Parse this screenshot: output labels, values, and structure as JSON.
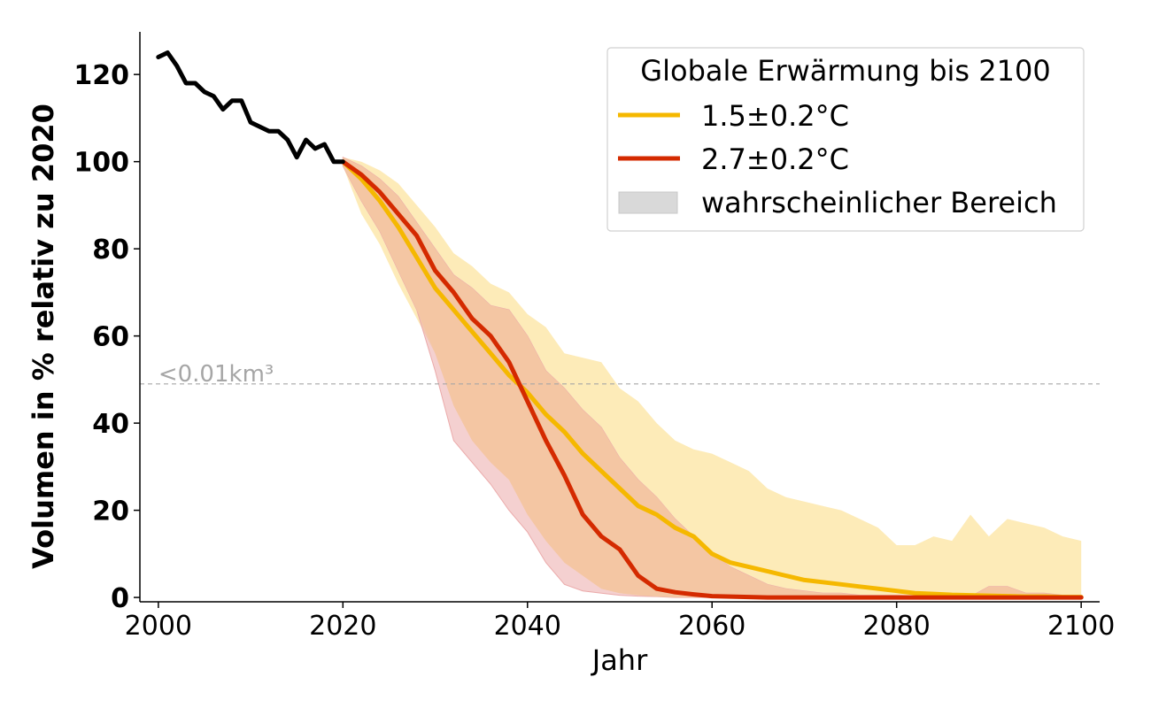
{
  "chart_data": {
    "type": "line",
    "xlabel": "Jahr",
    "ylabel": "Volumen in % relativ zu 2020",
    "xlim": [
      1998,
      2102
    ],
    "ylim": [
      -1,
      131
    ],
    "xticks": [
      2000,
      2020,
      2040,
      2060,
      2080,
      2100
    ],
    "yticks": [
      0,
      20,
      40,
      60,
      80,
      100,
      120
    ],
    "grid": false,
    "legend": {
      "title": "Globale Erwärmung bis 2100",
      "placement": "top-right",
      "entries": [
        "1.5±0.2°C",
        "2.7±0.2°C",
        "wahrscheinlicher Bereich"
      ]
    },
    "annotation": {
      "text": "<0.01km³",
      "y": 49
    },
    "colors": {
      "historical": "#000000",
      "s15": "#f5b800",
      "s27": "#d42a00",
      "band15": "#fdebb8",
      "band27": "#ebaaaa",
      "overlap": "#f4c6a3",
      "legend_patch": "#d9d9d9",
      "annotation": "#a6a6a6"
    },
    "series": [
      {
        "name": "historical",
        "x": [
          2000,
          2001,
          2002,
          2003,
          2004,
          2005,
          2006,
          2007,
          2008,
          2009,
          2010,
          2011,
          2012,
          2013,
          2014,
          2015,
          2016,
          2017,
          2018,
          2019,
          2020
        ],
        "values": [
          124,
          125,
          122,
          118,
          118,
          116,
          115,
          112,
          114,
          114,
          109,
          108,
          107,
          107,
          105,
          101,
          105,
          103,
          104,
          100,
          100
        ]
      },
      {
        "name": "1.5±0.2°C",
        "x": [
          2020,
          2022,
          2024,
          2026,
          2028,
          2030,
          2032,
          2034,
          2036,
          2038,
          2040,
          2042,
          2044,
          2046,
          2048,
          2050,
          2052,
          2054,
          2056,
          2058,
          2060,
          2062,
          2064,
          2066,
          2068,
          2070,
          2072,
          2074,
          2076,
          2078,
          2080,
          2082,
          2084,
          2086,
          2088,
          2090,
          2092,
          2094,
          2096,
          2098,
          2100
        ],
        "values": [
          100,
          96,
          91,
          85,
          78,
          71,
          66,
          61,
          56,
          51,
          47,
          42,
          38,
          33,
          29,
          25,
          21,
          19,
          16,
          14,
          10,
          8,
          7,
          6,
          5,
          4,
          3.5,
          3,
          2.5,
          2,
          1.5,
          1,
          0.8,
          0.6,
          0.5,
          0.4,
          0.3,
          0.2,
          0.2,
          0.1,
          0.1
        ]
      },
      {
        "name": "1.5±0.2°C wahrscheinlicher Bereich (obere Grenze)",
        "x": [
          2020,
          2022,
          2024,
          2026,
          2028,
          2030,
          2032,
          2034,
          2036,
          2038,
          2040,
          2042,
          2044,
          2046,
          2048,
          2050,
          2052,
          2054,
          2056,
          2058,
          2060,
          2062,
          2064,
          2066,
          2068,
          2070,
          2072,
          2074,
          2076,
          2078,
          2080,
          2082,
          2084,
          2086,
          2088,
          2090,
          2092,
          2094,
          2096,
          2098,
          2100
        ],
        "values": [
          101,
          100,
          98,
          95,
          90,
          85,
          79,
          76,
          72,
          70,
          65,
          62,
          56,
          55,
          54,
          48,
          45,
          40,
          36,
          34,
          33,
          31,
          29,
          25,
          23,
          22,
          21,
          20,
          18,
          16,
          12,
          12,
          14,
          13,
          19,
          14,
          18,
          17,
          16,
          14,
          13
        ]
      },
      {
        "name": "1.5±0.2°C wahrscheinlicher Bereich (untere Grenze)",
        "x": [
          2020,
          2022,
          2024,
          2026,
          2028,
          2030,
          2032,
          2034,
          2036,
          2038,
          2040,
          2042,
          2044,
          2046,
          2048,
          2050,
          2052,
          2054,
          2056,
          2058,
          2060,
          2062,
          2064,
          2066,
          2068,
          2070,
          2072,
          2074,
          2076,
          2078,
          2080,
          2082,
          2084,
          2086,
          2088,
          2090,
          2092,
          2094,
          2096,
          2098,
          2100
        ],
        "values": [
          99,
          88,
          81,
          72,
          64,
          56,
          44,
          36,
          31,
          27,
          19,
          13,
          8,
          5,
          2,
          1,
          0.5,
          0.2,
          0,
          0,
          0,
          0,
          0,
          0,
          0,
          0,
          0,
          0,
          0,
          0,
          0,
          0,
          0,
          0,
          0,
          0,
          0,
          0,
          0,
          0,
          0
        ]
      },
      {
        "name": "2.7±0.2°C",
        "x": [
          2020,
          2022,
          2024,
          2026,
          2028,
          2030,
          2032,
          2034,
          2036,
          2038,
          2040,
          2042,
          2044,
          2046,
          2048,
          2050,
          2052,
          2054,
          2056,
          2058,
          2060,
          2062,
          2064,
          2066,
          2068,
          2070,
          2072,
          2074,
          2076,
          2078,
          2080,
          2082,
          2084,
          2086,
          2088,
          2090,
          2092,
          2094,
          2096,
          2098,
          2100
        ],
        "values": [
          100,
          97,
          93,
          88,
          83,
          75,
          70,
          64,
          60,
          54,
          45,
          36,
          28,
          19,
          14,
          11,
          5,
          2,
          1.2,
          0.7,
          0.3,
          0.2,
          0.1,
          0,
          0,
          0,
          0,
          0,
          0,
          0,
          0,
          0,
          0,
          0,
          0,
          0,
          0,
          0,
          0,
          0,
          0
        ]
      },
      {
        "name": "2.7±0.2°C wahrscheinlicher Bereich (obere Grenze)",
        "x": [
          2020,
          2022,
          2024,
          2026,
          2028,
          2030,
          2032,
          2034,
          2036,
          2038,
          2040,
          2042,
          2044,
          2046,
          2048,
          2050,
          2052,
          2054,
          2056,
          2058,
          2060,
          2062,
          2064,
          2066,
          2068,
          2070,
          2072,
          2074,
          2076,
          2078,
          2080,
          2082,
          2084,
          2086,
          2088,
          2090,
          2092,
          2094,
          2096,
          2098,
          2100
        ],
        "values": [
          101,
          99,
          96,
          92,
          86,
          80,
          74,
          71,
          67,
          66,
          60,
          52,
          48,
          43,
          39,
          32,
          27,
          23,
          18,
          14,
          10,
          7,
          5,
          3,
          2,
          1.5,
          1,
          1,
          0.5,
          0.5,
          0.5,
          0.3,
          0.3,
          0.3,
          0.2,
          2.5,
          2.5,
          1,
          1,
          0.5,
          0.3
        ]
      },
      {
        "name": "2.7±0.2°C wahrscheinlicher Bereich (untere Grenze)",
        "x": [
          2020,
          2022,
          2024,
          2026,
          2028,
          2030,
          2032,
          2034,
          2036,
          2038,
          2040,
          2042,
          2044,
          2046,
          2048,
          2050,
          2052,
          2054,
          2056,
          2058,
          2060,
          2062,
          2064,
          2066,
          2068,
          2070,
          2072,
          2074,
          2076,
          2078,
          2080,
          2082,
          2084,
          2086,
          2088,
          2090,
          2092,
          2094,
          2096,
          2098,
          2100
        ],
        "values": [
          99,
          91,
          84,
          75,
          66,
          52,
          36,
          31,
          26,
          20,
          15,
          8,
          3,
          1.5,
          1,
          0.5,
          0.3,
          0.2,
          0,
          0,
          0,
          0,
          0,
          0,
          0,
          0,
          0,
          0,
          0,
          0,
          0,
          0,
          0,
          0,
          0,
          0,
          0,
          0,
          0,
          0,
          0
        ]
      }
    ]
  }
}
